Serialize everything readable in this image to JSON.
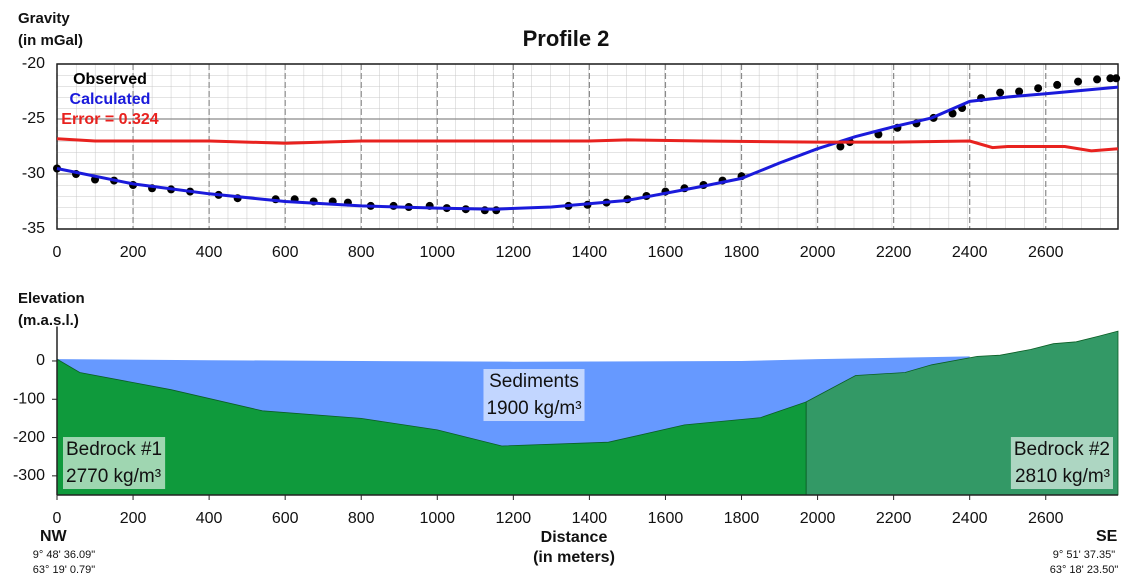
{
  "chart_data": [
    {
      "type": "line",
      "title": "Profile 2",
      "y_label": [
        "Gravity",
        "(in mGal)"
      ],
      "xlim": [
        0,
        2790
      ],
      "ylim": [
        -35,
        -20
      ],
      "xticks": [
        0,
        200,
        400,
        600,
        800,
        1000,
        1200,
        1400,
        1600,
        1800,
        2000,
        2200,
        2400,
        2600
      ],
      "yticks": [
        -20,
        -25,
        -30,
        -35
      ],
      "grid": true,
      "series": [
        {
          "name": "Observed",
          "color": "#000000",
          "marker": true,
          "x": [
            0,
            50,
            100,
            150,
            200,
            250,
            300,
            350,
            425,
            475,
            575,
            625,
            675,
            725,
            765,
            825,
            885,
            925,
            980,
            1025,
            1075,
            1125,
            1155,
            1345,
            1395,
            1445,
            1500,
            1550,
            1600,
            1650,
            1700,
            1750,
            1800,
            2060,
            2085,
            2160,
            2210,
            2260,
            2305,
            2355,
            2380,
            2430,
            2480,
            2530,
            2580,
            2630,
            2685,
            2735,
            2770,
            2785
          ],
          "values": [
            -29.5,
            -30.0,
            -30.5,
            -30.6,
            -31.0,
            -31.3,
            -31.4,
            -31.6,
            -31.9,
            -32.2,
            -32.3,
            -32.3,
            -32.5,
            -32.5,
            -32.6,
            -32.9,
            -32.9,
            -33.0,
            -32.9,
            -33.1,
            -33.2,
            -33.3,
            -33.3,
            -32.9,
            -32.8,
            -32.6,
            -32.3,
            -32.0,
            -31.6,
            -31.3,
            -31.0,
            -30.6,
            -30.2,
            -27.5,
            -27.1,
            -26.4,
            -25.8,
            -25.4,
            -24.9,
            -24.5,
            -24.0,
            -23.1,
            -22.6,
            -22.5,
            -22.2,
            -21.9,
            -21.6,
            -21.4,
            -21.3,
            -21.3
          ]
        },
        {
          "name": "Calculated",
          "color": "#1a1adb",
          "marker": false,
          "x": [
            0,
            200,
            400,
            600,
            800,
            1000,
            1150,
            1300,
            1500,
            1700,
            1800,
            1900,
            2000,
            2100,
            2200,
            2300,
            2400,
            2500,
            2600,
            2790
          ],
          "values": [
            -29.5,
            -30.9,
            -31.8,
            -32.5,
            -32.9,
            -33.1,
            -33.2,
            -33.0,
            -32.4,
            -31.1,
            -30.4,
            -29.0,
            -27.7,
            -26.6,
            -25.7,
            -24.9,
            -23.4,
            -23.0,
            -22.7,
            -22.1
          ]
        },
        {
          "name": "Error = 0.324",
          "color": "#e8221f",
          "marker": false,
          "x": [
            0,
            100,
            200,
            400,
            600,
            800,
            1000,
            1200,
            1400,
            1500,
            1700,
            2000,
            2200,
            2400,
            2460,
            2500,
            2650,
            2720,
            2790
          ],
          "values": [
            -26.8,
            -27.0,
            -27.0,
            -27.0,
            -27.2,
            -27.0,
            -27.0,
            -27.0,
            -27.0,
            -26.9,
            -27.0,
            -27.1,
            -27.1,
            -27.0,
            -27.6,
            -27.5,
            -27.5,
            -27.9,
            -27.7
          ]
        }
      ]
    },
    {
      "type": "area",
      "y_label": [
        "Elevation",
        "(m.a.s.l.)"
      ],
      "x_label": [
        "Distance",
        "(in meters)"
      ],
      "xlim": [
        0,
        2790
      ],
      "ylim": [
        -350,
        90
      ],
      "xticks": [
        0,
        200,
        400,
        600,
        800,
        1000,
        1200,
        1400,
        1600,
        1800,
        2000,
        2200,
        2400,
        2600
      ],
      "yticks": [
        0,
        -100,
        -200,
        -300
      ],
      "layers": [
        {
          "name": "Sediments",
          "density": "1900 kg/m³",
          "color": "#6699ff",
          "x": [
            0,
            400,
            800,
            1200,
            1800,
            2000,
            2400
          ],
          "values": [
            5,
            2,
            0,
            -2,
            0,
            5,
            12
          ]
        },
        {
          "name": "Bedrock #1",
          "density": "2770 kg/m³",
          "color": "#0f9a3c",
          "x": [
            0,
            60,
            300,
            540,
            800,
            1000,
            1170,
            1450,
            1650,
            1850,
            1970
          ],
          "values": [
            5,
            -30,
            -75,
            -130,
            -150,
            -180,
            -222,
            -212,
            -167,
            -148,
            -107
          ]
        },
        {
          "name": "Bedrock #2",
          "density": "2810 kg/m³",
          "color": "#339966",
          "x": [
            1970,
            2100,
            2230,
            2300,
            2420,
            2480,
            2560,
            2620,
            2680,
            2740,
            2790
          ],
          "values": [
            -107,
            -38,
            -30,
            -10,
            12,
            15,
            30,
            45,
            50,
            65,
            78
          ]
        }
      ],
      "annotations": {
        "left": [
          "NW",
          "9° 48' 36.09\"",
          "63° 19' 0.79\""
        ],
        "right": [
          "SE",
          "9° 51' 37.35\"",
          "63° 18' 23.50\""
        ]
      }
    }
  ]
}
